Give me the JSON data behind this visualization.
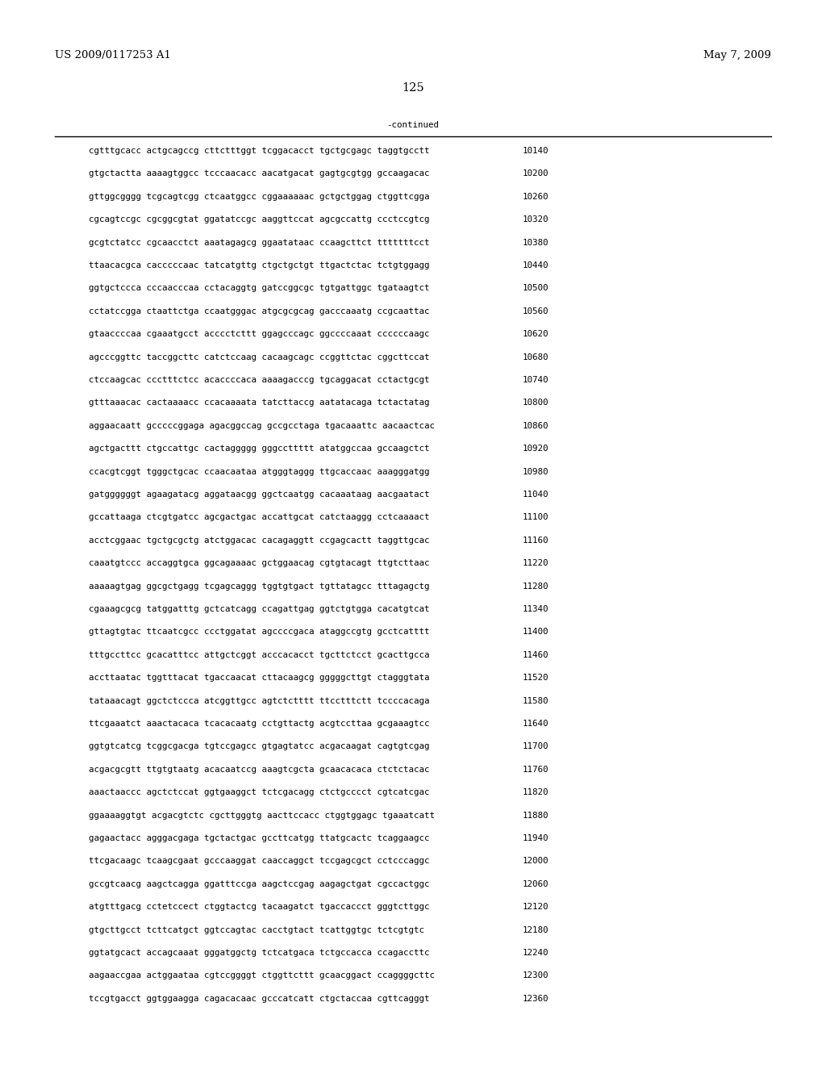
{
  "header_left": "US 2009/0117253 A1",
  "header_right": "May 7, 2009",
  "page_number": "125",
  "continued_label": "-continued",
  "background_color": "#ffffff",
  "text_color": "#000000",
  "font_size_header": 9.5,
  "font_size_page": 10.5,
  "font_size_body": 7.8,
  "sequence_lines": [
    [
      "cgtttgcacc actgcagccg cttctttggt tcggacacct tgctgcgagc taggtgcctt",
      "10140"
    ],
    [
      "gtgctactta aaaagtggcc tcccaacacc aacatgacat gagtgcgtgg gccaagacac",
      "10200"
    ],
    [
      "gttggcgggg tcgcagtcgg ctcaatggcc cggaaaaaac gctgctggag ctggttcgga",
      "10260"
    ],
    [
      "cgcagtccgc cgcggcgtat ggatatccgc aaggttccat agcgccattg ccctccgtcg",
      "10320"
    ],
    [
      "gcgtctatcc cgcaacctct aaatagagcg ggaatataac ccaagcttct tttttttcct",
      "10380"
    ],
    [
      "ttaacacgca cacccccaac tatcatgttg ctgctgctgt ttgactctac tctgtggagg",
      "10440"
    ],
    [
      "ggtgctccca cccaacccaa cctacaggtg gatccggcgc tgtgattggc tgataagtct",
      "10500"
    ],
    [
      "cctatccgga ctaattctga ccaatgggac atgcgcgcag gacccaaatg ccgcaattac",
      "10560"
    ],
    [
      "gtaaccccaa cgaaatgcct acccctcttt ggagcccagc ggccccaaat ccccccaagc",
      "10620"
    ],
    [
      "agcccggttc taccggcttc catctccaag cacaagcagc ccggttctac cggcttccat",
      "10680"
    ],
    [
      "ctccaagcac ccctttctcc acaccccaca aaaagacccg tgcaggacat cctactgcgt",
      "10740"
    ],
    [
      "gtttaaacac cactaaaacc ccacaaaata tatcttaccg aatatacaga tctactatag",
      "10800"
    ],
    [
      "aggaacaatt gcccccggaga agacggccag gccgcctaga tgacaaattc aacaactcac",
      "10860"
    ],
    [
      "agctgacttt ctgccattgc cactaggggg gggccttttt atatggccaa gccaagctct",
      "10920"
    ],
    [
      "ccacgtcggt tgggctgcac ccaacaataa atgggtaggg ttgcaccaac aaagggatgg",
      "10980"
    ],
    [
      "gatggggggt agaagatacg aggataacgg ggctcaatgg cacaaataag aacgaatact",
      "11040"
    ],
    [
      "gccattaaga ctcgtgatcc agcgactgac accattgcat catctaaggg cctcaaaact",
      "11100"
    ],
    [
      "acctcggaac tgctgcgctg atctggacac cacagaggtt ccgagcactt taggttgcac",
      "11160"
    ],
    [
      "caaatgtccc accaggtgca ggcagaaaac gctggaacag cgtgtacagt ttgtcttaac",
      "11220"
    ],
    [
      "aaaaagtgag ggcgctgagg tcgagcaggg tggtgtgact tgttatagcc tttagagctg",
      "11280"
    ],
    [
      "cgaaagcgcg tatggatttg gctcatcagg ccagattgag ggtctgtgga cacatgtcat",
      "11340"
    ],
    [
      "gttagtgtac ttcaatcgcc ccctggatat agccccgaca ataggccgtg gcctcatttt",
      "11400"
    ],
    [
      "tttgccttcc gcacatttcc attgctcggt acccacacct tgcttctcct gcacttgcca",
      "11460"
    ],
    [
      "accttaatac tggtttacat tgaccaacat cttacaagcg gggggcttgt ctagggtata",
      "11520"
    ],
    [
      "tataaacagt ggctctccca atcggttgcc agtctctttt ttcctttctt tccccacaga",
      "11580"
    ],
    [
      "ttcgaaatct aaactacaca tcacacaatg cctgttactg acgtccttaa gcgaaagtcc",
      "11640"
    ],
    [
      "ggtgtcatcg tcggcgacga tgtccgagcc gtgagtatcc acgacaagat cagtgtcgag",
      "11700"
    ],
    [
      "acgacgcgtt ttgtgtaatg acacaatccg aaagtcgcta gcaacacaca ctctctacac",
      "11760"
    ],
    [
      "aaactaaccc agctctccat ggtgaaggct tctcgacagg ctctgcccct cgtcatcgac",
      "11820"
    ],
    [
      "ggaaaaggtgt acgacgtctc cgcttgggtg aacttccacc ctggtggagc tgaaatcatt",
      "11880"
    ],
    [
      "gagaactacc agggacgaga tgctactgac gccttcatgg ttatgcactc tcaggaagcc",
      "11940"
    ],
    [
      "ttcgacaagc tcaagcgaat gcccaaggat caaccaggct tccgagcgct cctcccaggc",
      "12000"
    ],
    [
      "gccgtcaacg aagctcagga ggatttccga aagctccgag aagagctgat cgccactggc",
      "12060"
    ],
    [
      "atgtttgacg cctetccect ctggtactcg tacaagatct tgaccaccct gggtcttggc",
      "12120"
    ],
    [
      "gtgcttgcct tcttcatgct ggtccagtac cacctgtact tcattggtgc tctcgtgtc",
      "12180"
    ],
    [
      "ggtatgcact accagcaaat gggatggctg tctcatgaca tctgccacca ccagaccttc",
      "12240"
    ],
    [
      "aagaaccgaa actggaataa cgtccggggt ctggttcttt gcaacggact ccaggggcttc",
      "12300"
    ],
    [
      "tccgtgacct ggtggaagga cagacacaac gcccatcatt ctgctaccaa cgttcagggt",
      "12360"
    ]
  ]
}
